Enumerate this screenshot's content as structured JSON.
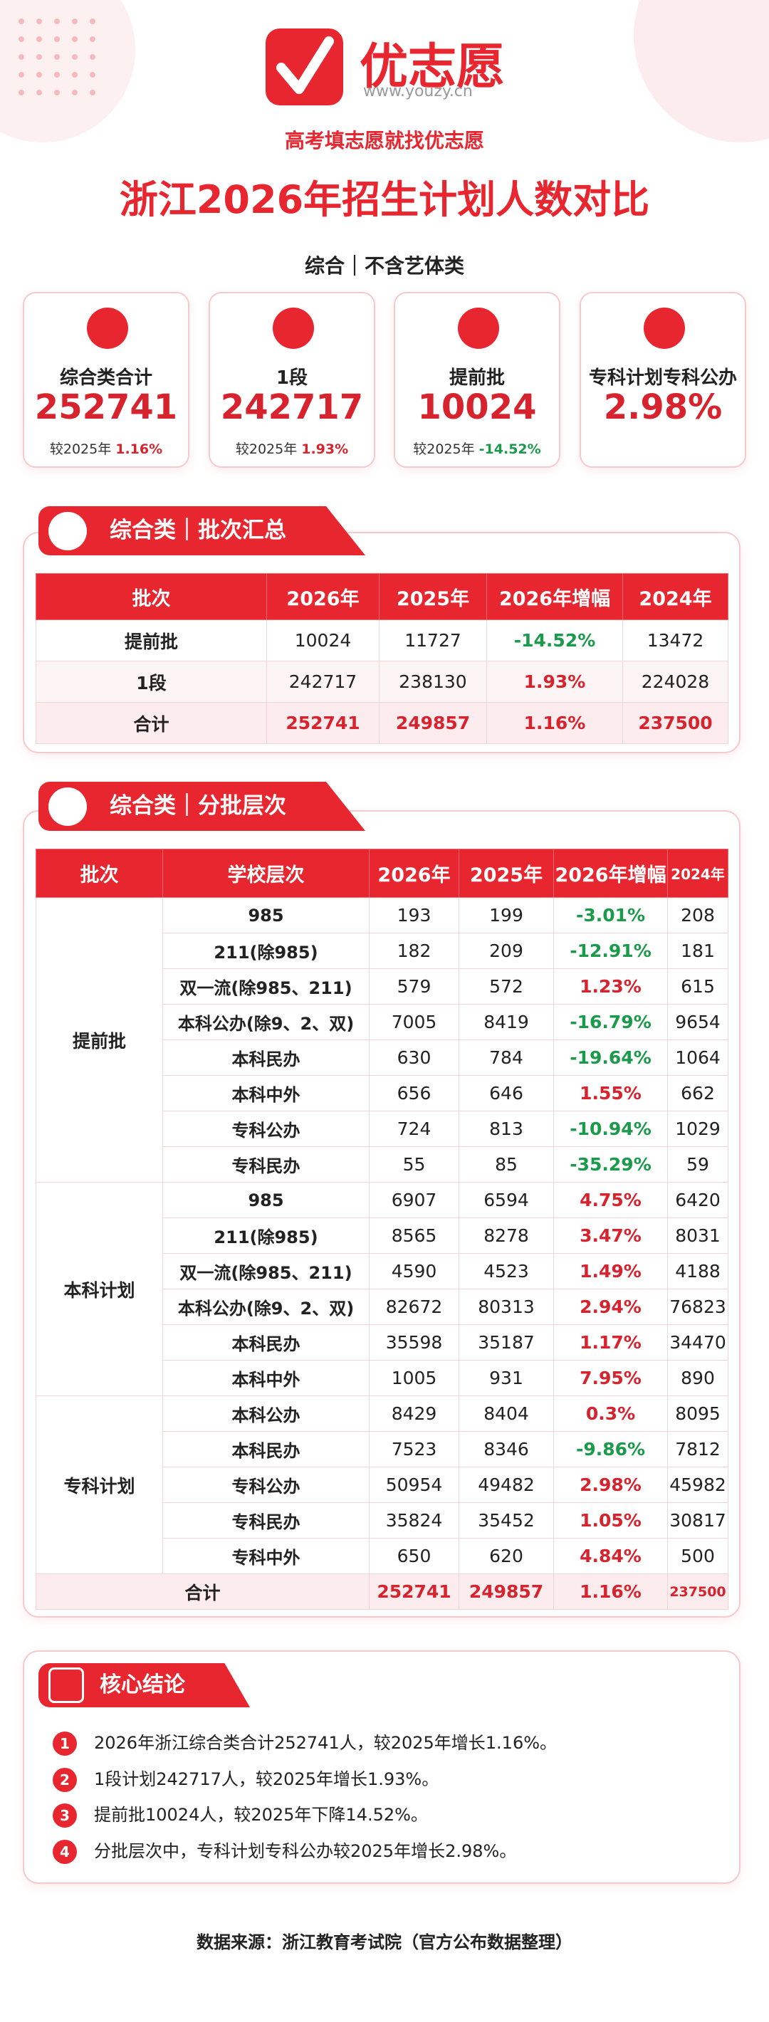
{
  "header": {
    "brand": "优志愿",
    "url": "www.youzy.cn",
    "slogan": "高考填志愿就找优志愿",
    "title": "浙江2026年招生计划人数对比",
    "subtitle": "综合｜不含艺体类"
  },
  "cards": [
    {
      "label": "综合类合计",
      "value": "252741",
      "compare": "较2025年",
      "change": "1.16%"
    },
    {
      "label": "1段",
      "value": "242717",
      "compare": "较2025年",
      "change": "1.93%"
    },
    {
      "label": "提前批",
      "value": "10024",
      "compare": "较2025年",
      "change": "-14.52%"
    },
    {
      "label": "专科计划专科公办",
      "value": "2.98%"
    }
  ],
  "summary": {
    "title": "综合类｜批次汇总",
    "headers": [
      "批次",
      "2026年",
      "2025年",
      "2026年增幅",
      "2024年"
    ],
    "rows": [
      [
        "提前批",
        "10024",
        "11727",
        "-14.52%",
        "13472"
      ],
      [
        "1段",
        "242717",
        "238130",
        "1.93%",
        "224028"
      ]
    ],
    "total": [
      "合计",
      "252741",
      "249857",
      "1.16%",
      "237500"
    ]
  },
  "detail": {
    "title": "综合类｜分批层次",
    "headers": [
      "批次",
      "学校层次",
      "2026年",
      "2025年",
      "2026年增幅",
      "2024年"
    ],
    "groups": [
      {
        "name": "提前批",
        "rows": [
          [
            "985",
            "193",
            "199",
            "-3.01%",
            "208"
          ],
          [
            "211(除985)",
            "182",
            "209",
            "-12.91%",
            "181"
          ],
          [
            "双一流(除985、211)",
            "579",
            "572",
            "1.23%",
            "615"
          ],
          [
            "本科公办(除9、2、双)",
            "7005",
            "8419",
            "-16.79%",
            "9654"
          ],
          [
            "本科民办",
            "630",
            "784",
            "-19.64%",
            "1064"
          ],
          [
            "本科中外",
            "656",
            "646",
            "1.55%",
            "662"
          ],
          [
            "专科公办",
            "724",
            "813",
            "-10.94%",
            "1029"
          ],
          [
            "专科民办",
            "55",
            "85",
            "-35.29%",
            "59"
          ]
        ]
      },
      {
        "name": "本科计划",
        "rows": [
          [
            "985",
            "6907",
            "6594",
            "4.75%",
            "6420"
          ],
          [
            "211(除985)",
            "8565",
            "8278",
            "3.47%",
            "8031"
          ],
          [
            "双一流(除985、211)",
            "4590",
            "4523",
            "1.49%",
            "4188"
          ],
          [
            "本科公办(除9、2、双)",
            "82672",
            "80313",
            "2.94%",
            "76823"
          ],
          [
            "本科民办",
            "35598",
            "35187",
            "1.17%",
            "34470"
          ],
          [
            "本科中外",
            "1005",
            "931",
            "7.95%",
            "890"
          ]
        ]
      },
      {
        "name": "专科计划",
        "rows": [
          [
            "本科公办",
            "8429",
            "8404",
            "0.3%",
            "8095"
          ],
          [
            "本科民办",
            "7523",
            "8346",
            "-9.86%",
            "7812"
          ],
          [
            "专科公办",
            "50954",
            "49482",
            "2.98%",
            "45982"
          ],
          [
            "专科民办",
            "35824",
            "35452",
            "1.05%",
            "30817"
          ],
          [
            "专科中外",
            "650",
            "620",
            "4.84%",
            "500"
          ]
        ]
      }
    ],
    "total": [
      "合计",
      "252741",
      "249857",
      "1.16%",
      "237500"
    ]
  },
  "conclusions": {
    "title": "核心结论",
    "items": [
      {
        "num": "1",
        "text": "2026年浙江综合类合计252741人，较2025年增长1.16%。"
      },
      {
        "num": "2",
        "text": "1段计划242717人，较2025年增长1.93%。"
      },
      {
        "num": "3",
        "text": "提前批10024人，较2025年下降14.52%。"
      },
      {
        "num": "4",
        "text": "分批层次中，专科计划专科公办较2025年增长2.98%。"
      }
    ]
  },
  "footer": "数据来源：浙江教育考试院（官方公布数据整理）"
}
